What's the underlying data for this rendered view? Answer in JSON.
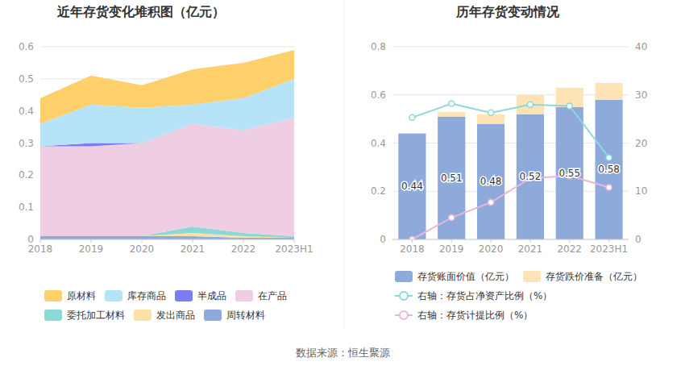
{
  "chart_data": [
    {
      "type": "area",
      "title": "近年存货变化堆积图（亿元）",
      "stacked": true,
      "grid": true,
      "legend": "bottom",
      "categories": [
        "2018",
        "2019",
        "2020",
        "2021",
        "2022",
        "2023H1"
      ],
      "ylim": [
        0,
        0.6
      ],
      "yticks": [
        0,
        0.1,
        0.2,
        0.3,
        0.4,
        0.5,
        0.6
      ],
      "series": [
        {
          "name": "原材料",
          "color": "#fdd06c",
          "values": [
            0.08,
            0.09,
            0.07,
            0.11,
            0.11,
            0.09
          ]
        },
        {
          "name": "库存商品",
          "color": "#b6e3f8",
          "values": [
            0.07,
            0.12,
            0.11,
            0.06,
            0.1,
            0.12
          ]
        },
        {
          "name": "半成品",
          "color": "#7c7cf0",
          "values": [
            0,
            0.01,
            0,
            0,
            0,
            0
          ]
        },
        {
          "name": "在产品",
          "color": "#efcde3",
          "values": [
            0.28,
            0.28,
            0.29,
            0.32,
            0.32,
            0.37
          ]
        },
        {
          "name": "委托加工材料",
          "color": "#8ad9d6",
          "values": [
            0,
            0,
            0,
            0.02,
            0.01,
            0.005
          ]
        },
        {
          "name": "发出商品",
          "color": "#fde0a6",
          "values": [
            0,
            0,
            0,
            0.01,
            0.005,
            0
          ]
        },
        {
          "name": "周转材料",
          "color": "#8ea9dc",
          "values": [
            0.01,
            0.01,
            0.01,
            0.01,
            0.005,
            0.005
          ]
        }
      ]
    },
    {
      "type": "bar",
      "title": "历年存货变动情况",
      "stacked": true,
      "grid": true,
      "legend": "bottom",
      "categories": [
        "2018",
        "2019",
        "2020",
        "2021",
        "2022",
        "2023H1"
      ],
      "ylim": [
        0,
        0.8
      ],
      "yticks": [
        0,
        0.2,
        0.4,
        0.6,
        0.8
      ],
      "y2lim": [
        0,
        40
      ],
      "y2ticks": [
        0,
        10,
        20,
        30,
        40
      ],
      "series": [
        {
          "name": "存货账面价值（亿元）",
          "type": "bar",
          "color": "#8eaadb",
          "data_labels": true,
          "values": [
            0.44,
            0.51,
            0.48,
            0.52,
            0.55,
            0.58
          ]
        },
        {
          "name": "存货跌价准备（亿元）",
          "type": "bar",
          "color": "#fde3b5",
          "values": [
            0,
            0.02,
            0.04,
            0.08,
            0.08,
            0.07
          ]
        },
        {
          "name": "右轴：存货占净资产比例（%）",
          "type": "line",
          "axis": "y2",
          "marker": "circle",
          "color": "#8dd8d8",
          "values": [
            25.3,
            28.2,
            26.3,
            28.0,
            27.7,
            17.0
          ]
        },
        {
          "name": "右轴：存货计提比例（%）",
          "type": "line",
          "axis": "y2",
          "marker": "circle",
          "color": "#eab6da",
          "values": [
            0,
            4.5,
            7.7,
            12.7,
            13.2,
            10.8
          ]
        }
      ]
    }
  ],
  "source": "数据来源：恒生聚源"
}
